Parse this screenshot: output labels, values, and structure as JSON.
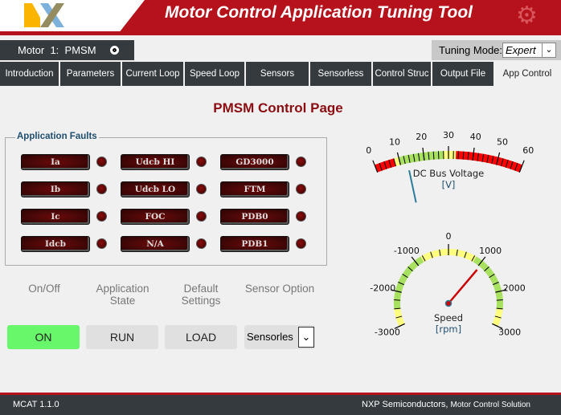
{
  "header": {
    "logo": "NXP",
    "title": "Motor Control Application Tuning Tool",
    "gear_icon": "gears-icon"
  },
  "motor": {
    "label": "Motor  1:  PMSM"
  },
  "tuning": {
    "label": "Tuning Mode:",
    "value": "Expert"
  },
  "tabs": [
    {
      "label": "Introduction",
      "w": 75
    },
    {
      "label": "Parameters",
      "w": 77
    },
    {
      "label": "Current Loop",
      "w": 78
    },
    {
      "label": "Speed Loop",
      "w": 76
    },
    {
      "label": "Sensors",
      "w": 80
    },
    {
      "label": "Sensorless",
      "w": 78
    },
    {
      "label": "Control Struc",
      "w": 74
    },
    {
      "label": "Output File",
      "w": 78
    },
    {
      "label": "App Control",
      "w": 82,
      "active": true
    }
  ],
  "page_title": "PMSM Control Page",
  "faults": {
    "title": "Application Faults",
    "items": [
      [
        "Ia",
        "Udcb HI",
        "GD3000"
      ],
      [
        "Ib",
        "Udcb LO",
        "FTM"
      ],
      [
        "Ic",
        "FOC",
        "PDB0"
      ],
      [
        "Idcb",
        "N/A",
        "PDB1"
      ]
    ]
  },
  "controls": {
    "onoff_label": "On/Off",
    "state_label1": "Application",
    "state_label2": "State",
    "default_label1": "Default",
    "default_label2": "Settings",
    "sensor_label": "Sensor Option",
    "on_button": "ON",
    "run_button": "RUN",
    "load_button": "LOAD",
    "sensor_value": "Sensorles"
  },
  "dc_gauge": {
    "title": "DC Bus Voltage",
    "unit": "[V]",
    "min": 0,
    "max": 60,
    "labels": [
      "0",
      "10",
      "20",
      "30",
      "40",
      "50",
      "60"
    ],
    "value": 13,
    "bands": [
      {
        "from": 0,
        "to": 8,
        "color": "#ff0000"
      },
      {
        "from": 8,
        "to": 10,
        "color": "#ffff80"
      },
      {
        "from": 10,
        "to": 28,
        "color": "#a8e060"
      },
      {
        "from": 28,
        "to": 33,
        "color": "#ffff80"
      },
      {
        "from": 33,
        "to": 60,
        "color": "#ff0000"
      }
    ]
  },
  "speed_gauge": {
    "title": "Speed",
    "unit": "[rpm]",
    "min": -3000,
    "max": 3000,
    "labels": [
      "-3000",
      "-2000",
      "-1000",
      "0",
      "1000",
      "2000",
      "3000"
    ],
    "value": 1050,
    "bands": [
      {
        "from": -3000,
        "to": -2500,
        "color": "#ffff80"
      },
      {
        "from": -2500,
        "to": -800,
        "color": "#a8e060"
      },
      {
        "from": -800,
        "to": 800,
        "color": "#ffff80"
      },
      {
        "from": 800,
        "to": 2500,
        "color": "#a8e060"
      },
      {
        "from": 2500,
        "to": 3000,
        "color": "#ffff80"
      }
    ]
  },
  "footer": {
    "version": "MCAT 1.1.0",
    "company": "NXP Semiconductors,",
    "tagline": "Motor Control Solution"
  }
}
